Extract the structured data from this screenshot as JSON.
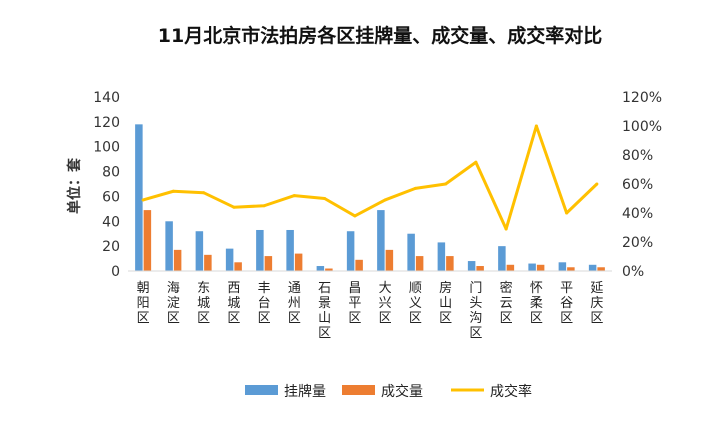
{
  "chart_data": {
    "type": "bar",
    "title": "11月北京市法拍房各区挂牌量、成交量、成交率对比",
    "ylabel": "单位：套",
    "categories": [
      "朝阳区",
      "海淀区",
      "东城区",
      "西城区",
      "丰台区",
      "通州区",
      "石景山区",
      "昌平区",
      "大兴区",
      "顺义区",
      "房山区",
      "门头沟区",
      "密云区",
      "怀柔区",
      "平谷区",
      "延庆区"
    ],
    "ylim": [
      0,
      140
    ],
    "yticks": [
      "0",
      "20",
      "40",
      "60",
      "80",
      "100",
      "120",
      "140"
    ],
    "y2lim": [
      0,
      1.2
    ],
    "y2ticks": [
      "0%",
      "20%",
      "40%",
      "60%",
      "80%",
      "100%",
      "120%"
    ],
    "series": [
      {
        "name": "挂牌量",
        "type": "bar",
        "axis": "left",
        "color": "#5b9bd5",
        "values": [
          118,
          40,
          32,
          18,
          33,
          33,
          4,
          32,
          49,
          30,
          23,
          8,
          20,
          6,
          7,
          5
        ]
      },
      {
        "name": "成交量",
        "type": "bar",
        "axis": "left",
        "color": "#ed7d31",
        "values": [
          49,
          17,
          13,
          7,
          12,
          14,
          2,
          9,
          17,
          12,
          12,
          4,
          5,
          5,
          3,
          3
        ]
      },
      {
        "name": "成交率",
        "type": "line",
        "axis": "right",
        "color": "#ffc000",
        "values": [
          0.49,
          0.55,
          0.54,
          0.44,
          0.45,
          0.52,
          0.5,
          0.38,
          0.49,
          0.57,
          0.6,
          0.75,
          0.29,
          1.0,
          0.4,
          0.6
        ]
      }
    ],
    "grid": false,
    "legend": "bottom"
  }
}
